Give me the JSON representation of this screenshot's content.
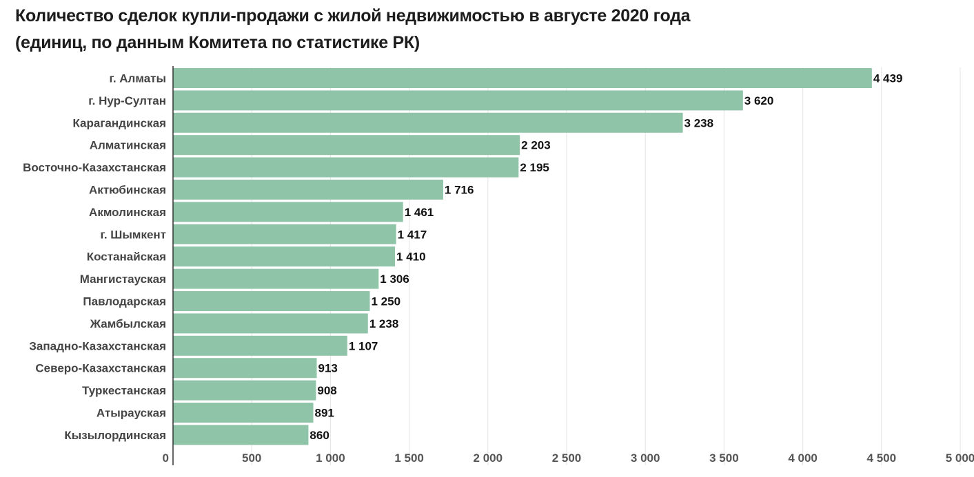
{
  "chart_data": {
    "type": "bar",
    "orientation": "horizontal",
    "title_lines": [
      "Количество сделок купли-продажи с жилой недвижимостью в августе 2020 года",
      "(единиц, по данным Комитета по статистике РК)"
    ],
    "categories": [
      "г. Алматы",
      "г. Нур-Султан",
      "Карагандинская",
      "Алматинская",
      "Восточно-Казахстанская",
      "Актюбинская",
      "Акмолинская",
      "г. Шымкент",
      "Костанайская",
      "Мангистауская",
      "Павлодарская",
      "Жамбылская",
      "Западно-Казахстанская",
      "Северо-Казахстанская",
      "Туркестанская",
      "Атырауская",
      "Кызылординская"
    ],
    "values": [
      4439,
      3620,
      3238,
      2203,
      2195,
      1716,
      1461,
      1417,
      1410,
      1306,
      1250,
      1238,
      1107,
      913,
      908,
      891,
      860
    ],
    "value_labels": [
      "4 439",
      "3 620",
      "3 238",
      "2 203",
      "2 195",
      "1 716",
      "1 461",
      "1 417",
      "1 410",
      "1 306",
      "1 250",
      "1 238",
      "1 107",
      "913",
      "908",
      "891",
      "860"
    ],
    "xlim": [
      0,
      5000
    ],
    "x_ticks": [
      0,
      500,
      1000,
      1500,
      2000,
      2500,
      3000,
      3500,
      4000,
      4500,
      5000
    ],
    "x_tick_labels": [
      "0",
      "500",
      "1 000",
      "1 500",
      "2 000",
      "2 500",
      "3 000",
      "3 500",
      "4 000",
      "4 500",
      "5 000"
    ],
    "grid": true,
    "bar_color": "#8fc4a8",
    "legend": "none"
  }
}
